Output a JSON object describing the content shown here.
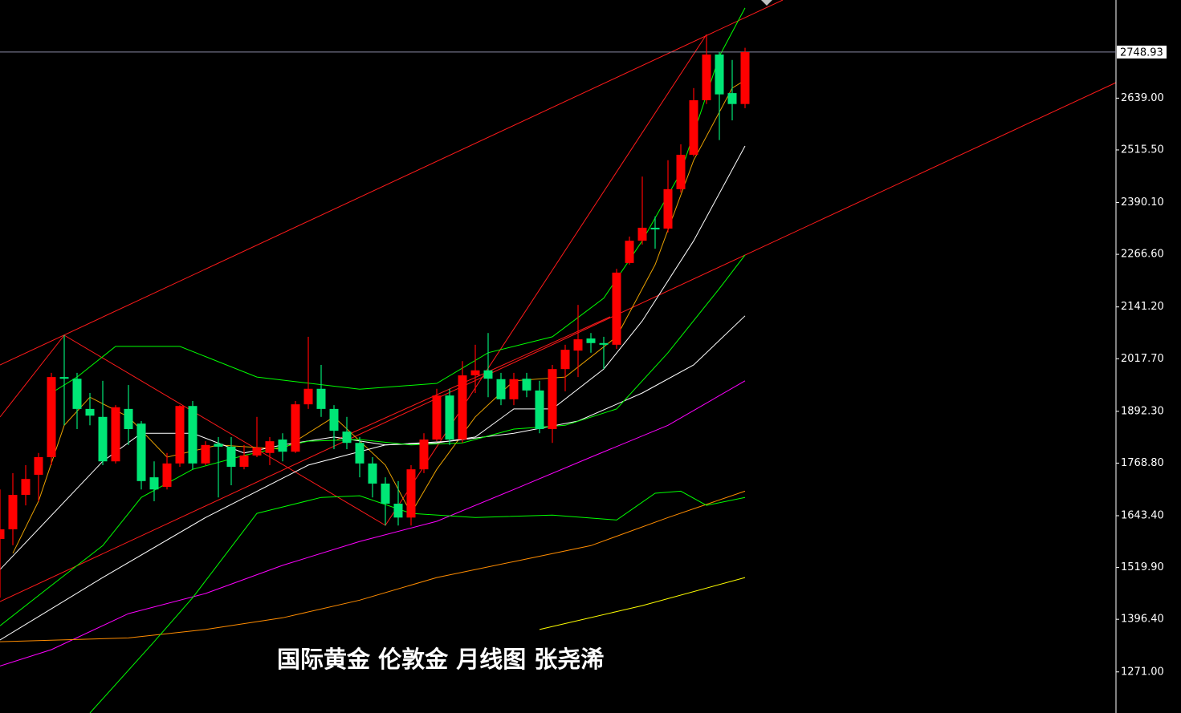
{
  "chart_data": {
    "type": "candlestick",
    "title": "国际黄金 伦敦金 月线图 张尧浠",
    "up_color": "#ff0000",
    "down_color": "#00e676",
    "open": [
      1588,
      1611,
      1693,
      1741,
      1783,
      1974,
      1970,
      1898,
      1879,
      1773,
      1898,
      1863,
      1735,
      1712,
      1768,
      1905,
      1768,
      1815,
      1808,
      1760,
      1787,
      1793,
      1825,
      1796,
      1909,
      1946,
      1898,
      1844,
      1817,
      1768,
      1720,
      1672,
      1639,
      1754,
      1825,
      1930,
      1825,
      1978,
      1990,
      1969,
      1921,
      1970,
      1942,
      1850,
      1993,
      2037,
      2066,
      2055,
      2051,
      2246,
      2299,
      2330,
      2328,
      2422,
      2504,
      2634,
      2743,
      2651,
      2625
    ],
    "high": [
      1706,
      1745,
      1764,
      1793,
      1984,
      2074,
      1984,
      1936,
      1965,
      1907,
      1955,
      1869,
      1773,
      1793,
      1907,
      1917,
      1821,
      1831,
      1831,
      1812,
      1879,
      1831,
      1840,
      1917,
      2070,
      2003,
      1907,
      1879,
      1831,
      1783,
      1735,
      1726,
      1764,
      1840,
      1946,
      1946,
      2012,
      2051,
      2079,
      1984,
      1984,
      1984,
      1965,
      2003,
      2051,
      2146,
      2079,
      2070,
      2232,
      2309,
      2452,
      2357,
      2491,
      2529,
      2663,
      2787,
      2749,
      2730,
      2759
    ],
    "low": [
      1448,
      1573,
      1668,
      1678,
      1764,
      1859,
      1850,
      1859,
      1764,
      1768,
      1812,
      1706,
      1678,
      1706,
      1760,
      1754,
      1764,
      1687,
      1716,
      1754,
      1783,
      1764,
      1773,
      1793,
      1898,
      1879,
      1802,
      1802,
      1735,
      1687,
      1620,
      1620,
      1620,
      1745,
      1821,
      1812,
      1817,
      1936,
      1926,
      1907,
      1907,
      1926,
      1840,
      1817,
      1940,
      1974,
      2032,
      1993,
      2041,
      2242,
      2290,
      2280,
      2319,
      2414,
      2500,
      2625,
      2539,
      2586,
      2615
    ],
    "close": [
      1611,
      1693,
      1731,
      1783,
      1974,
      1970,
      1898,
      1882,
      1773,
      1902,
      1850,
      1726,
      1706,
      1768,
      1905,
      1768,
      1812,
      1808,
      1760,
      1787,
      1806,
      1821,
      1796,
      1909,
      1946,
      1898,
      1846,
      1817,
      1768,
      1720,
      1672,
      1639,
      1754,
      1825,
      1930,
      1825,
      1978,
      1990,
      1970,
      1921,
      1969,
      1942,
      1850,
      1993,
      2039,
      2064,
      2055,
      2051,
      2223,
      2299,
      2330,
      2326,
      2422,
      2504,
      2634,
      2743,
      2648,
      2625,
      2748.93
    ],
    "lines": [
      {
        "color": "#e8a000",
        "x": [
          1,
          3,
          5,
          7,
          10,
          13,
          17,
          22,
          26,
          30,
          32,
          34,
          37,
          40,
          44,
          48,
          51,
          54,
          57,
          58
        ],
        "values": [
          1554,
          1678,
          1859,
          1926,
          1879,
          1783,
          1812,
          1802,
          1879,
          1764,
          1649,
          1754,
          1879,
          1965,
          1974,
          2070,
          2242,
          2491,
          2663,
          2682
        ]
      },
      {
        "color": "#ffffff",
        "x": [
          0,
          8,
          11,
          15,
          19,
          22,
          26,
          30,
          34,
          37,
          40,
          43,
          47,
          50,
          54,
          58
        ],
        "values": [
          1515,
          1773,
          1840,
          1840,
          1793,
          1812,
          1831,
          1812,
          1817,
          1831,
          1898,
          1898,
          1993,
          2108,
          2299,
          2525
        ]
      },
      {
        "color": "#ffffff",
        "x": [
          0,
          8,
          16,
          24,
          30,
          35,
          40,
          45,
          50,
          54,
          58
        ],
        "values": [
          1347,
          1496,
          1639,
          1764,
          1812,
          1821,
          1840,
          1869,
          1936,
          2003,
          2120
        ]
      },
      {
        "color": "#ff00ff",
        "x": [
          0,
          4,
          10,
          16,
          22,
          28,
          34,
          40,
          46,
          52,
          58
        ],
        "values": [
          1285,
          1324,
          1410,
          1458,
          1525,
          1582,
          1630,
          1706,
          1783,
          1859,
          1965
        ]
      },
      {
        "color": "#ff8c00",
        "x": [
          0,
          10,
          16,
          22,
          28,
          34,
          40,
          46,
          52,
          58
        ],
        "values": [
          1343,
          1352,
          1372,
          1400,
          1442,
          1496,
          1534,
          1572,
          1639,
          1702
        ]
      },
      {
        "color": "#ffff00",
        "x": [
          42,
          50,
          58
        ],
        "values": [
          1372,
          1429,
          1496
        ]
      },
      {
        "color": "#00ff00",
        "x": [
          4,
          6,
          9,
          14,
          20,
          28,
          34,
          38,
          43,
          47,
          50,
          53,
          56,
          58
        ],
        "values": [
          1936,
          1974,
          2047,
          2047,
          1974,
          1945,
          1959,
          2032,
          2070,
          2162,
          2299,
          2462,
          2739,
          2854
        ]
      },
      {
        "color": "#00ff00",
        "x": [
          7,
          12,
          15,
          20,
          25,
          28,
          32,
          37,
          43,
          48,
          51,
          53,
          55,
          58
        ],
        "values": [
          1173,
          1343,
          1448,
          1649,
          1687,
          1691,
          1649,
          1639,
          1645,
          1633,
          1697,
          1702,
          1668,
          1687
        ]
      },
      {
        "color": "#00ff00",
        "x": [
          0,
          4,
          8,
          11,
          15,
          19,
          24,
          28,
          32,
          36,
          40,
          44,
          48,
          52,
          56,
          58
        ],
        "values": [
          1381,
          1477,
          1572,
          1687,
          1754,
          1787,
          1821,
          1825,
          1812,
          1817,
          1850,
          1859,
          1898,
          2032,
          2185,
          2265
        ]
      }
    ],
    "last_price": 2748.93,
    "ylim": [
      1173,
      2873
    ],
    "yticks": [
      {
        "value": 1271,
        "label": "1271.00"
      },
      {
        "value": 1396.4,
        "label": "1396.40"
      },
      {
        "value": 1519.9,
        "label": "1519.90"
      },
      {
        "value": 1643.4,
        "label": "1643.40"
      },
      {
        "value": 1768.8,
        "label": "1768.80"
      },
      {
        "value": 1892.3,
        "label": "1892.30"
      },
      {
        "value": 2017.7,
        "label": "2017.70"
      },
      {
        "value": 2141.2,
        "label": "2141.20"
      },
      {
        "value": 2266.6,
        "label": "2266.60"
      },
      {
        "value": 2390.1,
        "label": "2390.10"
      },
      {
        "value": 2515.5,
        "label": "2515.50"
      },
      {
        "value": 2639,
        "label": "2639.00"
      }
    ]
  }
}
